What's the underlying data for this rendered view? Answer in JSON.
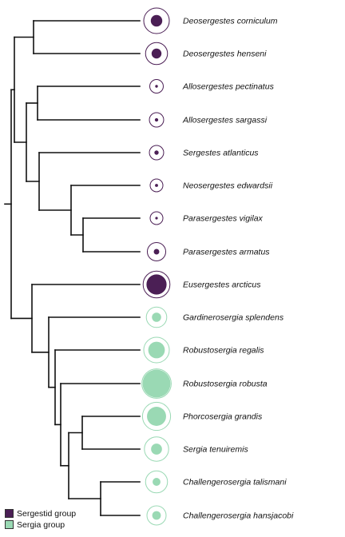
{
  "colors": {
    "sergestid": "#4b1f55",
    "sergia_fill": "#9ad9b4",
    "sergia_ring": "#9ad9b4",
    "branch": "#111111"
  },
  "taxa": [
    {
      "name": "Deosergestes corniculum",
      "group": "sergestid",
      "outer": 1.0,
      "inner": 0.45
    },
    {
      "name": "Deosergestes henseni",
      "group": "sergestid",
      "outer": 0.86,
      "inner": 0.45
    },
    {
      "name": "Allosergestes pectinatus",
      "group": "sergestid",
      "outer": 0.53,
      "inner": 0.2
    },
    {
      "name": "Allosergestes sargassi",
      "group": "sergestid",
      "outer": 0.56,
      "inner": 0.24
    },
    {
      "name": "Sergestes atlanticus",
      "group": "sergestid",
      "outer": 0.56,
      "inner": 0.3
    },
    {
      "name": "Neosergestes edwardsii",
      "group": "sergestid",
      "outer": 0.5,
      "inner": 0.24
    },
    {
      "name": "Parasergestes vigilax",
      "group": "sergestid",
      "outer": 0.5,
      "inner": 0.2
    },
    {
      "name": "Parasergestes armatus",
      "group": "sergestid",
      "outer": 0.72,
      "inner": 0.3
    },
    {
      "name": "Eusergestes arcticus",
      "group": "sergestid",
      "outer": 1.05,
      "inner": 0.75
    },
    {
      "name": "Gardinerosergia splendens",
      "group": "sergia",
      "outer": 0.8,
      "inner": 0.45
    },
    {
      "name": "Robustosergia regalis",
      "group": "sergia",
      "outer": 1.0,
      "inner": 0.65
    },
    {
      "name": "Robustosergia robusta",
      "group": "sergia",
      "outer": 1.15,
      "inner": 0.95
    },
    {
      "name": "Phorcosergia grandis",
      "group": "sergia",
      "outer": 1.1,
      "inner": 0.68
    },
    {
      "name": "Sergia tenuiremis",
      "group": "sergia",
      "outer": 0.95,
      "inner": 0.45
    },
    {
      "name": "Challengerosergia talismani",
      "group": "sergia",
      "outer": 0.86,
      "inner": 0.36
    },
    {
      "name": "Challengerosergia hansjacobi",
      "group": "sergia",
      "outer": 0.75,
      "inner": 0.45
    }
  ],
  "legend": [
    {
      "label": "Sergestid group",
      "group": "sergestid"
    },
    {
      "label": "Sergia group",
      "group": "sergia"
    }
  ]
}
